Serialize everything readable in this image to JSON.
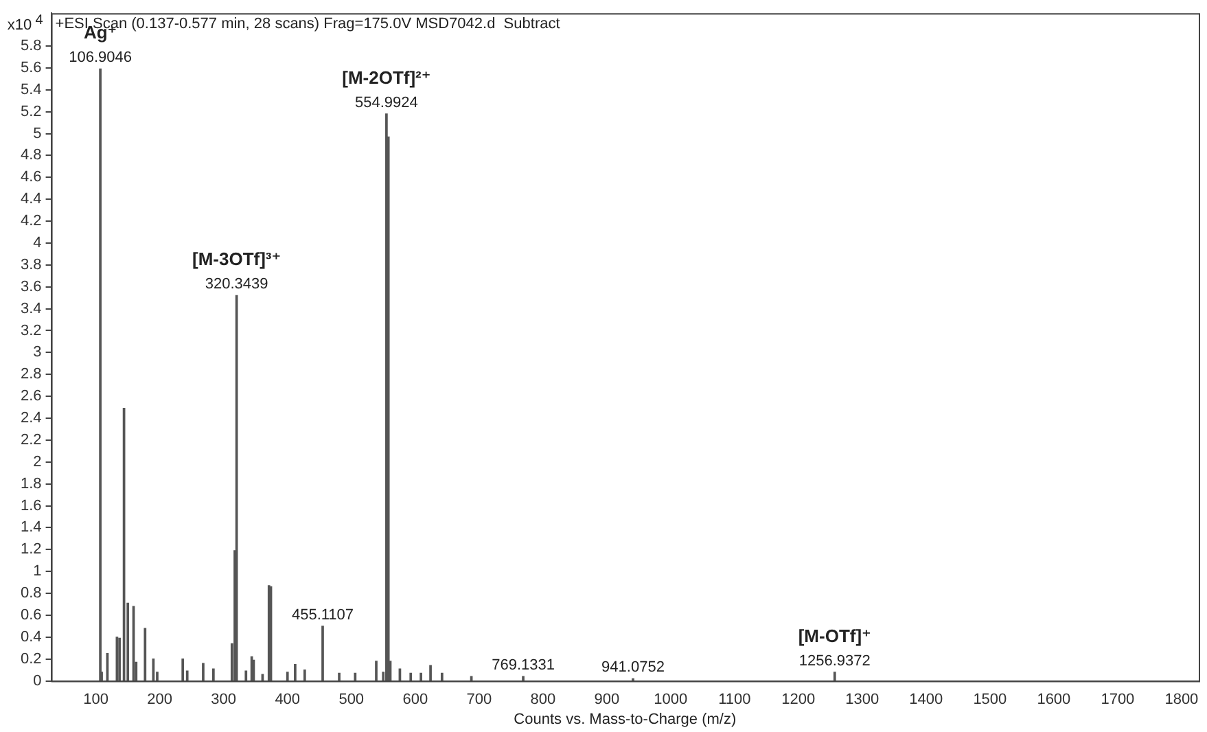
{
  "chart_data": {
    "type": "bar",
    "title": "+ESI Scan (0.137-0.577 min, 28 scans) Frag=175.0V MSD7042.d  Subtract",
    "xlabel": "Counts vs. Mass-to-Charge (m/z)",
    "ylabel": "x10$^{4}$",
    "x": [
      106.9046,
      109,
      118,
      133,
      137,
      144,
      150,
      159,
      163,
      177,
      190,
      196,
      236,
      243,
      268,
      284,
      313,
      317.5,
      320.3439,
      335,
      344,
      347,
      361,
      371,
      374,
      400,
      412,
      427,
      455.1107,
      481,
      506,
      539,
      550,
      554.9924,
      558,
      561,
      576,
      593,
      609,
      624,
      642,
      688,
      769.1331,
      941.0752,
      1256.9372
    ],
    "values": [
      5.59,
      0.08,
      0.25,
      0.4,
      0.39,
      2.49,
      0.71,
      0.68,
      0.17,
      0.48,
      0.2,
      0.08,
      0.2,
      0.09,
      0.16,
      0.11,
      0.34,
      1.19,
      3.52,
      0.09,
      0.22,
      0.19,
      0.06,
      0.87,
      0.86,
      0.08,
      0.15,
      0.1,
      0.5,
      0.07,
      0.07,
      0.18,
      0.08,
      5.18,
      4.97,
      0.18,
      0.11,
      0.07,
      0.07,
      0.14,
      0.07,
      0.04,
      0.04,
      0.02,
      0.08
    ],
    "color": "#555555",
    "xlim": [
      30,
      1827
    ],
    "xticks": [
      100,
      200,
      300,
      400,
      500,
      600,
      700,
      800,
      900,
      1000,
      1100,
      1200,
      1300,
      1400,
      1500,
      1600,
      1700,
      1800
    ],
    "ylim": [
      0,
      6.1
    ],
    "yticks": [
      0,
      0.2,
      0.4,
      0.6,
      0.8,
      1,
      1.2,
      1.4,
      1.6,
      1.8,
      2,
      2.2,
      2.4,
      2.6,
      2.8,
      3,
      3.2,
      3.4,
      3.6,
      3.8,
      4,
      4.2,
      4.4,
      4.6,
      4.8,
      5,
      5.2,
      5.4,
      5.6,
      5.8
    ],
    "annotations": [
      {
        "text": "Ag⁺",
        "x": 106.9046,
        "y": 5.59
      },
      {
        "text": "106.9046",
        "x": 106.9046,
        "y": 5.59
      },
      {
        "text": "[M-3OTf]³⁺",
        "x": 320.3439,
        "y": 3.52
      },
      {
        "text": "320.3439",
        "x": 320.3439,
        "y": 3.52
      },
      {
        "text": "[M-2OTf]²⁺",
        "x": 554.9924,
        "y": 5.18
      },
      {
        "text": "554.9924",
        "x": 554.9924,
        "y": 5.18
      },
      {
        "text": "455.1107",
        "x": 455.1107,
        "y": 0.5
      },
      {
        "text": "769.1331",
        "x": 769.1331,
        "y": 0.04
      },
      {
        "text": "941.0752",
        "x": 941.0752,
        "y": 0.02
      },
      {
        "text": "[M-OTf]⁺",
        "x": 1256.9372,
        "y": 0.08
      },
      {
        "text": "1256.9372",
        "x": 1256.9372,
        "y": 0.08
      }
    ]
  }
}
